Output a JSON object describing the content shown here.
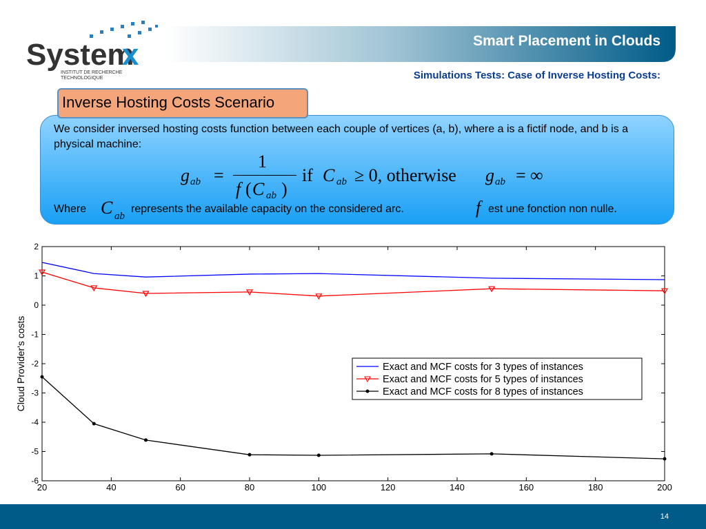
{
  "header": {
    "logo": {
      "name": "System",
      "mark": "x",
      "tagline_1": "INSTITUT DE RECHERCHE",
      "tagline_2": "TECHNOLOGIQUE"
    },
    "title": "Smart Placement in Clouds",
    "subtitle": "Simulations Tests: Case of Inverse Hosting Costs:"
  },
  "scenario": {
    "label": "Inverse Hosting Costs Scenario",
    "intro": "We consider inversed hosting costs function between each couple of vertices (a, b), where a is a fictif node, and b is a physical machine:",
    "formula": {
      "g": "g",
      "sub": "ab",
      "eq": "=",
      "numerator": "1",
      "f": "f",
      "open": "(",
      "C": "C",
      "close": ")",
      "if": "if",
      "cond": "≥ 0, otherwise",
      "inf": "= ∞"
    },
    "where": "Where",
    "where_C": "C",
    "where_sub": "ab",
    "where_text": "represents the available capacity on the considered arc.",
    "where_f": "f",
    "where_end": "est une fonction non nulle."
  },
  "chart_data": {
    "type": "line",
    "ylabel": "Cloud Provider's costs",
    "x": [
      20,
      35,
      50,
      80,
      100,
      150,
      200
    ],
    "xlim": [
      20,
      200
    ],
    "xticks": [
      20,
      40,
      60,
      80,
      100,
      120,
      140,
      160,
      180,
      200
    ],
    "ylim": [
      -6,
      2
    ],
    "yticks": [
      -6,
      -5,
      -4,
      -3,
      -2,
      -1,
      0,
      1,
      2
    ],
    "legend": "center right",
    "series": [
      {
        "name": "Exact and MCF costs for 3 types of instances",
        "color": "#0000ff",
        "marker": "none",
        "values": [
          1.46,
          1.08,
          0.96,
          1.06,
          1.08,
          0.92,
          0.87
        ]
      },
      {
        "name": "Exact and MCF costs for 5 types of instances",
        "color": "#ff0000",
        "marker": "triangle",
        "values": [
          1.13,
          0.59,
          0.4,
          0.45,
          0.31,
          0.56,
          0.49
        ]
      },
      {
        "name": "Exact and MCF costs for 8 types of instances",
        "color": "#000000",
        "marker": "dot",
        "values": [
          -2.45,
          -4.05,
          -4.61,
          -5.11,
          -5.13,
          -5.08,
          -5.25
        ]
      }
    ]
  },
  "footer": {
    "page": "14"
  }
}
